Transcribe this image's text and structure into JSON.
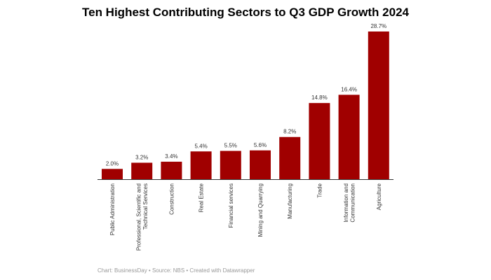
{
  "chart_data": {
    "type": "bar",
    "title": "Ten Highest Contributing Sectors to Q3 GDP Growth 2024",
    "categories": [
      [
        "Public Administration"
      ],
      [
        "Professional, Scientific and",
        "Technical Services"
      ],
      [
        "Construction"
      ],
      [
        "Real Estate"
      ],
      [
        "Financial services"
      ],
      [
        "Mining and Quarrying"
      ],
      [
        "Manufacturing"
      ],
      [
        "Trade"
      ],
      [
        "Information and",
        "Communication"
      ],
      [
        "Agriculture"
      ]
    ],
    "values": [
      2.0,
      3.2,
      3.4,
      5.4,
      5.5,
      5.6,
      8.2,
      14.8,
      16.4,
      28.7
    ],
    "value_labels": [
      "2.0%",
      "3.2%",
      "3.4%",
      "5.4%",
      "5.5%",
      "5.6%",
      "8.2%",
      "14.8%",
      "16.4%",
      "28.7%"
    ],
    "unit": "%",
    "ylim": [
      0,
      28.7
    ],
    "grid": false,
    "bar_color": "#a00000",
    "footer": "Chart: BusinessDay • Source: NBS • Created with Datawrapper"
  }
}
